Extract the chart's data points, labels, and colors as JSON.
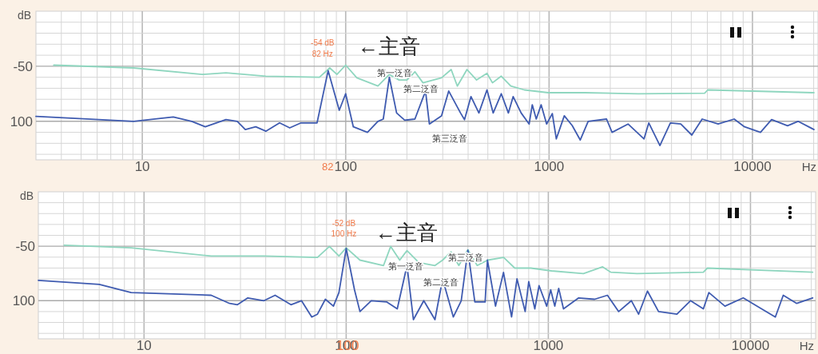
{
  "chart_data": [
    {
      "type": "line",
      "ylabel": "dB",
      "xlabel": "Hz",
      "log": "x",
      "grid": true,
      "xlim": [
        3,
        21000
      ],
      "ylim": [
        -135,
        0
      ],
      "xticks": [
        {
          "value": 4,
          "label": null
        },
        {
          "value": 5,
          "label": null
        },
        {
          "value": 6,
          "label": null
        },
        {
          "value": 7,
          "label": null
        },
        {
          "value": 8,
          "label": null
        },
        {
          "value": 9,
          "label": null
        },
        10,
        {
          "value": 20,
          "label": null
        },
        {
          "value": 30,
          "label": null
        },
        {
          "value": 40,
          "label": null
        },
        {
          "value": 50,
          "label": null
        },
        {
          "value": 60,
          "label": null
        },
        {
          "value": 70,
          "label": null
        },
        {
          "value": 80,
          "label": null
        },
        {
          "value": 90,
          "label": null
        },
        100,
        {
          "value": 200,
          "label": null
        },
        {
          "value": 300,
          "label": null
        },
        {
          "value": 400,
          "label": null
        },
        {
          "value": 500,
          "label": null
        },
        {
          "value": 600,
          "label": null
        },
        {
          "value": 700,
          "label": null
        },
        {
          "value": 800,
          "label": null
        },
        {
          "value": 900,
          "label": null
        },
        1000,
        {
          "value": 2000,
          "label": null
        },
        {
          "value": 3000,
          "label": null
        },
        {
          "value": 4000,
          "label": null
        },
        {
          "value": 5000,
          "label": null
        },
        {
          "value": 6000,
          "label": null
        },
        {
          "value": 7000,
          "label": null
        },
        {
          "value": 8000,
          "label": null
        },
        {
          "value": 9000,
          "label": null
        },
        10000,
        {
          "value": 20000,
          "label": null
        }
      ],
      "yticks": [
        {
          "value": -10,
          "label": null
        },
        {
          "value": -20,
          "label": null
        },
        {
          "value": -30,
          "label": null
        },
        {
          "value": -40,
          "label": null
        },
        {
          "value": -50,
          "label": "-50"
        },
        {
          "value": -60,
          "label": null
        },
        {
          "value": -70,
          "label": null
        },
        {
          "value": -80,
          "label": null
        },
        {
          "value": -90,
          "label": null
        },
        {
          "value": -100,
          "label": "100"
        },
        {
          "value": -110,
          "label": null
        },
        {
          "value": -120,
          "label": null
        },
        {
          "value": -130,
          "label": null
        }
      ],
      "series": [
        {
          "color": "#8fd6bf",
          "x": [
            3.67,
            9.06,
            19.7,
            25.8,
            40.5,
            74.3,
            83.5,
            90.6,
            100,
            113.5,
            144,
            164,
            183,
            200,
            219,
            240,
            296,
            330,
            354,
            395,
            440,
            495,
            527,
            582,
            648,
            755,
            991,
            1500,
            2746,
            5820,
            6030,
            20050
          ],
          "values": [
            -49,
            -51.5,
            -57.5,
            -56,
            -59,
            -60,
            -51.5,
            -57.5,
            -49,
            -60.5,
            -68,
            -57.5,
            -62.5,
            -62.5,
            -55,
            -65,
            -60.5,
            -53,
            -68,
            -53,
            -62.5,
            -56.5,
            -65,
            -59,
            -68,
            -71.5,
            -74,
            -74,
            -75,
            -74.5,
            -71.5,
            -74
          ]
        },
        {
          "color": "#3f5bb0",
          "x": [
            3,
            9.06,
            14.2,
            17.5,
            20.4,
            25.8,
            29.3,
            32.1,
            36.1,
            40.5,
            47.3,
            53.1,
            60.3,
            72.3,
            82,
            93,
            100,
            109,
            128,
            144,
            153,
            164,
            178,
            195,
            219,
            247,
            258,
            296,
            321,
            367,
            384,
            413,
            452,
            495,
            531,
            582,
            631,
            666,
            729,
            798,
            827,
            865,
            914,
            973,
            1037,
            1085,
            1188,
            1300,
            1423,
            1557,
            1916,
            2040,
            2445,
            2930,
            3093,
            3508,
            3948,
            4439,
            5032,
            5660,
            6780,
            8130,
            9140,
            10950,
            12420,
            14880,
            16750,
            20050
          ],
          "values": [
            -95.5,
            -100,
            -96,
            -100,
            -105,
            -98.5,
            -100,
            -107.5,
            -105,
            -109,
            -101.5,
            -106,
            -101.5,
            -101.5,
            -54,
            -90,
            -75,
            -105,
            -110,
            -100,
            -98,
            -60,
            -92.5,
            -99,
            -98,
            -72.5,
            -102.5,
            -95,
            -72.5,
            -92.5,
            -98.5,
            -77.5,
            -92.5,
            -71.5,
            -92.5,
            -75,
            -92.5,
            -77.5,
            -92.5,
            -102.5,
            -85,
            -98,
            -85,
            -102.5,
            -93,
            -116,
            -95,
            -104,
            -117,
            -100,
            -98,
            -110,
            -102.5,
            -116,
            -101.5,
            -122,
            -101.5,
            -102.5,
            -112.5,
            -98,
            -102.5,
            -98,
            -105,
            -110,
            -98.5,
            -104,
            -100,
            -107.5
          ]
        }
      ],
      "annotations": [
        {
          "text": "-54 dB\n82 Hz",
          "x": 82,
          "y": -54
        },
        "←主音",
        "第一泛音",
        "第二泛音",
        "第三泛音",
        "82"
      ]
    },
    {
      "type": "line",
      "ylabel": "dB",
      "xlabel": "Hz",
      "log": "x",
      "grid": true,
      "xlim": [
        3,
        21000
      ],
      "ylim": [
        -135,
        0
      ],
      "xticks": [
        {
          "value": 4,
          "label": null
        },
        {
          "value": 5,
          "label": null
        },
        {
          "value": 6,
          "label": null
        },
        {
          "value": 7,
          "label": null
        },
        {
          "value": 8,
          "label": null
        },
        {
          "value": 9,
          "label": null
        },
        10,
        {
          "value": 20,
          "label": null
        },
        {
          "value": 30,
          "label": null
        },
        {
          "value": 40,
          "label": null
        },
        {
          "value": 50,
          "label": null
        },
        {
          "value": 60,
          "label": null
        },
        {
          "value": 70,
          "label": null
        },
        {
          "value": 80,
          "label": null
        },
        {
          "value": 90,
          "label": null
        },
        100,
        {
          "value": 200,
          "label": null
        },
        {
          "value": 300,
          "label": null
        },
        {
          "value": 400,
          "label": null
        },
        {
          "value": 500,
          "label": null
        },
        {
          "value": 600,
          "label": null
        },
        {
          "value": 700,
          "label": null
        },
        {
          "value": 800,
          "label": null
        },
        {
          "value": 900,
          "label": null
        },
        1000,
        {
          "value": 2000,
          "label": null
        },
        {
          "value": 3000,
          "label": null
        },
        {
          "value": 4000,
          "label": null
        },
        {
          "value": 5000,
          "label": null
        },
        {
          "value": 6000,
          "label": null
        },
        {
          "value": 7000,
          "label": null
        },
        {
          "value": 8000,
          "label": null
        },
        {
          "value": 9000,
          "label": null
        },
        10000,
        {
          "value": 20000,
          "label": null
        }
      ],
      "yticks": [
        {
          "value": -10,
          "label": null
        },
        {
          "value": -20,
          "label": null
        },
        {
          "value": -30,
          "label": null
        },
        {
          "value": -40,
          "label": null
        },
        {
          "value": -50,
          "label": "-50"
        },
        {
          "value": -60,
          "label": null
        },
        {
          "value": -70,
          "label": null
        },
        {
          "value": -80,
          "label": null
        },
        {
          "value": -90,
          "label": null
        },
        {
          "value": -100,
          "label": "100"
        },
        {
          "value": -110,
          "label": null
        },
        {
          "value": -120,
          "label": null
        },
        {
          "value": -130,
          "label": null
        }
      ],
      "series": [
        {
          "color": "#8fd6bf",
          "x": [
            4.03,
            8.64,
            21.5,
            39.2,
            72.1,
            82.6,
            92.1,
            100,
            117,
            153,
            166,
            184,
            200,
            229,
            275,
            300,
            330,
            361,
            400,
            445,
            501,
            601,
            682,
            819,
            1038,
            1492,
            1857,
            2034,
            2746,
            5846,
            6120,
            20300
          ],
          "values": [
            -49,
            -51.5,
            -59,
            -59,
            -60.2,
            -50.2,
            -59,
            -51.5,
            -62.7,
            -67.7,
            -50.2,
            -62.7,
            -54,
            -65,
            -67.7,
            -62.7,
            -55.2,
            -67.7,
            -53.2,
            -67.7,
            -62.7,
            -60.2,
            -70.1,
            -70.1,
            -72.6,
            -75.1,
            -68.9,
            -73.8,
            -75.1,
            -73.8,
            -70.1,
            -73.8
          ]
        },
        {
          "color": "#3f5bb0",
          "x": [
            3,
            6,
            8.64,
            21.5,
            26.5,
            29,
            32.6,
            39.2,
            44.5,
            53.3,
            60.1,
            67.6,
            72.1,
            78.9,
            86.5,
            92.1,
            100,
            110,
            117,
            133,
            159,
            179,
            200,
            215,
            242,
            275,
            300,
            339,
            371,
            400,
            433,
            487,
            500,
            548,
            600,
            658,
            700,
            768,
            800,
            857,
            900,
            982,
            1028,
            1076,
            1125,
            1189,
            1413,
            1694,
            1960,
            2228,
            2575,
            2797,
            3093,
            3510,
            4326,
            5053,
            5846,
            6225,
            7475,
            9210,
            10760,
            13270,
            14530,
            16940,
            20300
          ],
          "values": [
            -81.3,
            -85,
            -92.5,
            -95,
            -102.5,
            -103.7,
            -97.4,
            -100,
            -95,
            -103.7,
            -100,
            -115,
            -112.4,
            -98.7,
            -105,
            -92.5,
            -52,
            -90,
            -110,
            -100,
            -101.2,
            -107.5,
            -67.7,
            -117.4,
            -100,
            -117.4,
            -80,
            -115,
            -100,
            -53.7,
            -101.2,
            -101.2,
            -62.7,
            -105,
            -74,
            -115,
            -80,
            -110,
            -82.5,
            -107.5,
            -86.2,
            -105,
            -90,
            -105,
            -88.7,
            -107.5,
            -97.4,
            -98.7,
            -95,
            -110,
            -100,
            -112.4,
            -91.2,
            -110,
            -112.4,
            -100,
            -107.5,
            -92.5,
            -105,
            -97.4,
            -105,
            -115,
            -95,
            -102.5,
            -97.4
          ]
        }
      ],
      "annotations": [
        {
          "text": "-52 dB\n100 Hz",
          "x": 100,
          "y": -52
        },
        "←主音",
        "第一泛音",
        "第二泛音",
        "第三泛音",
        "100"
      ]
    }
  ]
}
